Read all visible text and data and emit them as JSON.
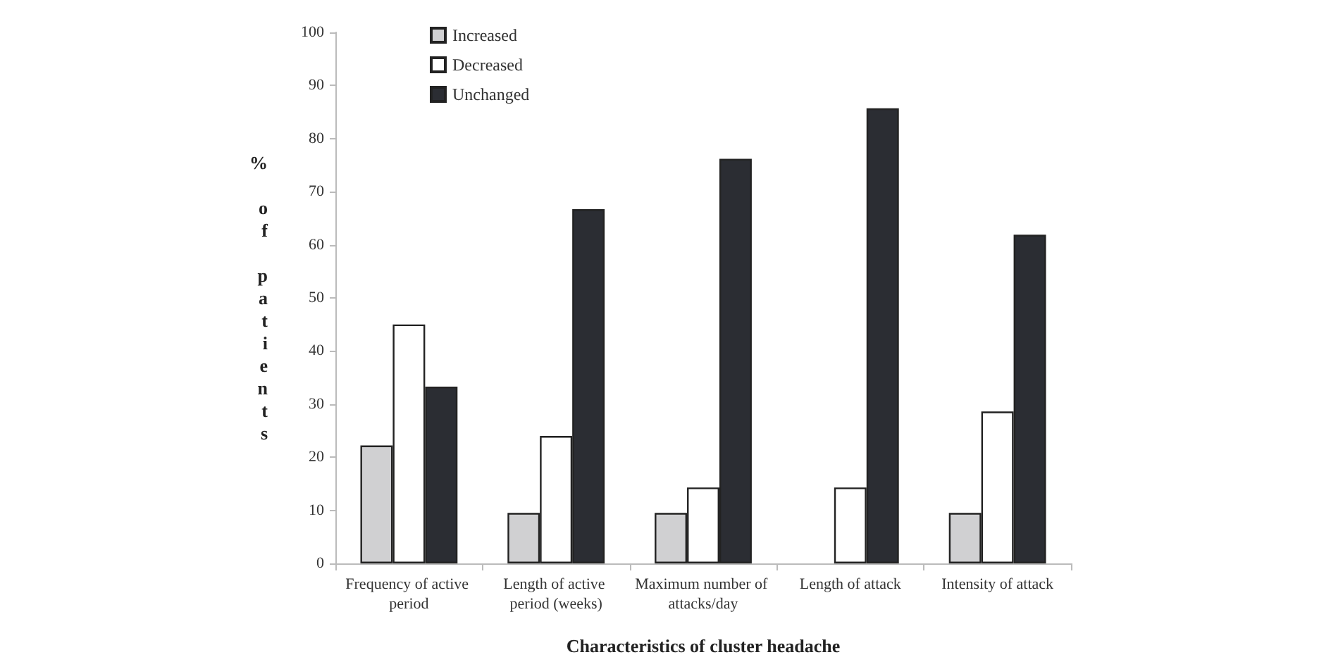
{
  "chart_data": {
    "type": "bar",
    "xlabel": "Characteristics of cluster headache",
    "ylabel": "% of patients",
    "categories": [
      "Frequency of active period",
      "Length of active period (weeks)",
      "Maximum number of attacks/day",
      "Length of attack",
      "Intensity of attack"
    ],
    "series": [
      {
        "name": "Increased",
        "color": "#d0d0d2",
        "values": [
          22.2,
          9.5,
          9.5,
          0,
          9.5
        ]
      },
      {
        "name": "Decreased",
        "color": "#ffffff",
        "values": [
          45,
          24,
          14.3,
          14.3,
          28.6
        ]
      },
      {
        "name": "Unchanged",
        "color": "#2b2d33",
        "values": [
          33.3,
          66.7,
          76.2,
          85.7,
          61.9
        ]
      }
    ],
    "ylim": [
      0,
      100
    ],
    "yticks": [
      0,
      10,
      20,
      30,
      40,
      50,
      60,
      70,
      80,
      90,
      100
    ],
    "grid": false,
    "legend": "top left"
  }
}
